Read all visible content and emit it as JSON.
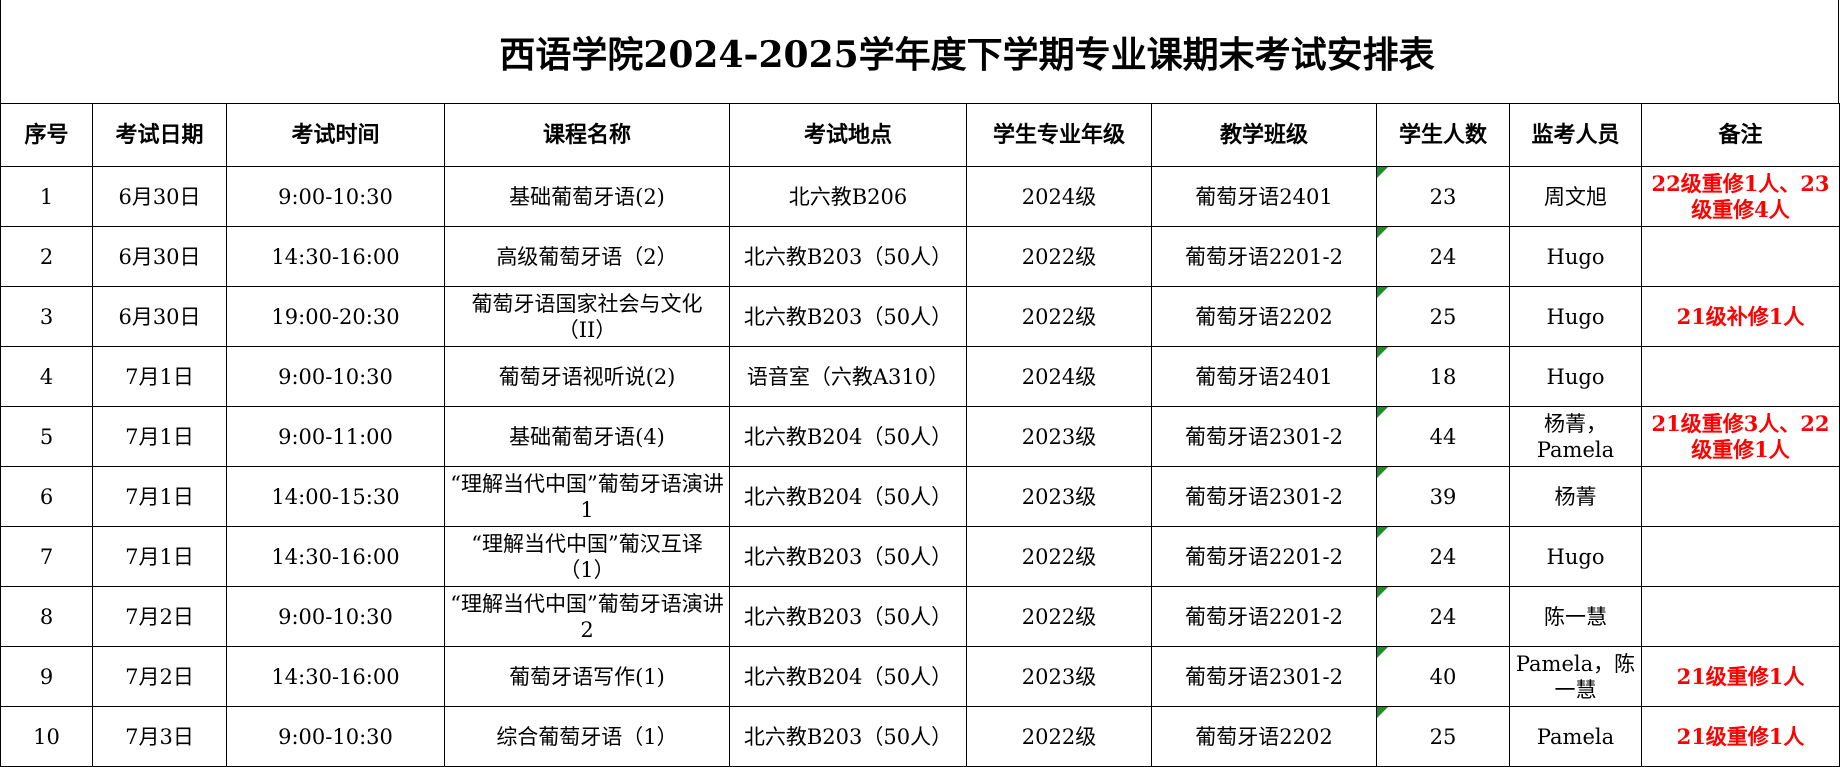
{
  "title": "西语学院2024-2025学年度下学期专业课期末考试安排表",
  "colors": {
    "remark": "#ff0000",
    "cell_flag": "#1a8f2a"
  },
  "headers": [
    "序号",
    "考试日期",
    "考试时间",
    "课程名称",
    "考试地点",
    "学生专业年级",
    "教学班级",
    "学生人数",
    "监考人员",
    "备注"
  ],
  "rows": [
    {
      "no": "1",
      "date": "6月30日",
      "time": "9:00-10:30",
      "course": "基础葡萄牙语(2)",
      "place": "北六教B206",
      "grade": "2024级",
      "class": "葡萄牙语2401",
      "count": "23",
      "proctor": "周文旭",
      "remark": "22级重修1人、23级重修4人"
    },
    {
      "no": "2",
      "date": "6月30日",
      "time": "14:30-16:00",
      "course": "高级葡萄牙语（2）",
      "place": "北六教B203（50人）",
      "grade": "2022级",
      "class": "葡萄牙语2201-2",
      "count": "24",
      "proctor": "Hugo",
      "remark": ""
    },
    {
      "no": "3",
      "date": "6月30日",
      "time": "19:00-20:30",
      "course": "葡萄牙语国家社会与文化（II）",
      "place": "北六教B203（50人）",
      "grade": "2022级",
      "class": "葡萄牙语2202",
      "count": "25",
      "proctor": "Hugo",
      "remark": "21级补修1人"
    },
    {
      "no": "4",
      "date": "7月1日",
      "time": "9:00-10:30",
      "course": "葡萄牙语视听说(2)",
      "place": "语音室（六教A310）",
      "grade": "2024级",
      "class": "葡萄牙语2401",
      "count": "18",
      "proctor": "Hugo",
      "remark": ""
    },
    {
      "no": "5",
      "date": "7月1日",
      "time": "9:00-11:00",
      "course": "基础葡萄牙语(4)",
      "place": "北六教B204（50人）",
      "grade": "2023级",
      "class": "葡萄牙语2301-2",
      "count": "44",
      "proctor": "杨菁，Pamela",
      "remark": "21级重修3人、22级重修1人"
    },
    {
      "no": "6",
      "date": "7月1日",
      "time": "14:00-15:30",
      "course": "“理解当代中国”葡萄牙语演讲1",
      "place": "北六教B204（50人）",
      "grade": "2023级",
      "class": "葡萄牙语2301-2",
      "count": "39",
      "proctor": "杨菁",
      "remark": ""
    },
    {
      "no": "7",
      "date": "7月1日",
      "time": "14:30-16:00",
      "course": "“理解当代中国”葡汉互译（1）",
      "place": "北六教B203（50人）",
      "grade": "2022级",
      "class": "葡萄牙语2201-2",
      "count": "24",
      "proctor": "Hugo",
      "remark": ""
    },
    {
      "no": "8",
      "date": "7月2日",
      "time": "9:00-10:30",
      "course": "“理解当代中国”葡萄牙语演讲2",
      "place": "北六教B203（50人）",
      "grade": "2022级",
      "class": "葡萄牙语2201-2",
      "count": "24",
      "proctor": "陈一慧",
      "remark": ""
    },
    {
      "no": "9",
      "date": "7月2日",
      "time": "14:30-16:00",
      "course": "葡萄牙语写作(1)",
      "place": "北六教B204（50人）",
      "grade": "2023级",
      "class": "葡萄牙语2301-2",
      "count": "40",
      "proctor": "Pamela，陈一慧",
      "remark": "21级重修1人"
    },
    {
      "no": "10",
      "date": "7月3日",
      "time": "9:00-10:30",
      "course": "综合葡萄牙语（1）",
      "place": "北六教B203（50人）",
      "grade": "2022级",
      "class": "葡萄牙语2202",
      "count": "25",
      "proctor": "Pamela",
      "remark": "21级重修1人"
    }
  ]
}
